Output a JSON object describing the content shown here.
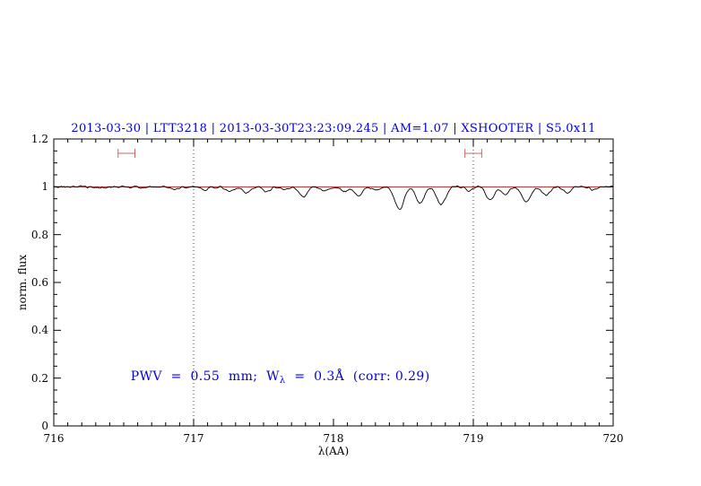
{
  "chart_data": {
    "type": "line",
    "title": "2013-03-30 | LTT3218 | 2013-03-30T23:23:09.245 | AM=1.07 | XSHOOTER | S5.0x11",
    "title_color": "#0000dd",
    "xlabel": "λ(AA)",
    "ylabel": "norm. flux",
    "xlim": [
      716,
      720
    ],
    "ylim": [
      0,
      1.2
    ],
    "xticks": [
      716,
      717,
      718,
      719,
      720
    ],
    "xtick_labels": [
      "716",
      "717",
      "718",
      "719",
      "720"
    ],
    "yticks": [
      0,
      0.2,
      0.4,
      0.6,
      0.8,
      1,
      1.2
    ],
    "ytick_labels": [
      "0",
      "0.2",
      "0.4",
      "0.6",
      "0.8",
      "1",
      "1.2"
    ],
    "x_minor_step": 0.1,
    "y_minor_step": 0.05,
    "grid": "off",
    "legend": "none",
    "dotted_vlines": [
      717,
      719
    ],
    "series": [
      {
        "name": "observed-spectrum",
        "color": "#000000",
        "description": "normalized spectrum near 1.0 with telluric absorption dips"
      },
      {
        "name": "continuum-model",
        "color": "#b22222",
        "flat_value": 1.0
      }
    ],
    "absorption_lines": [
      [
        716.33,
        0.007,
        0.025
      ],
      [
        716.62,
        0.006,
        0.025
      ],
      [
        716.87,
        0.01,
        0.028
      ],
      [
        717.08,
        0.012,
        0.025
      ],
      [
        717.26,
        0.02,
        0.028
      ],
      [
        717.38,
        0.024,
        0.028
      ],
      [
        717.52,
        0.018,
        0.028
      ],
      [
        717.66,
        0.012,
        0.025
      ],
      [
        717.78,
        0.042,
        0.03
      ],
      [
        717.93,
        0.014,
        0.025
      ],
      [
        718.08,
        0.02,
        0.028
      ],
      [
        718.18,
        0.034,
        0.028
      ],
      [
        718.31,
        0.012,
        0.025
      ],
      [
        718.47,
        0.095,
        0.032
      ],
      [
        718.62,
        0.068,
        0.03
      ],
      [
        718.77,
        0.075,
        0.032
      ],
      [
        718.97,
        0.016,
        0.025
      ],
      [
        719.12,
        0.055,
        0.03
      ],
      [
        719.23,
        0.028,
        0.025
      ],
      [
        719.38,
        0.063,
        0.032
      ],
      [
        719.52,
        0.034,
        0.028
      ],
      [
        719.67,
        0.024,
        0.028
      ],
      [
        719.86,
        0.012,
        0.025
      ]
    ],
    "noise_amplitude": 0.0045,
    "sample_step": 0.008,
    "range_markers": {
      "color": "#cc6666",
      "flux": 1.14,
      "halfwidth": 0.06,
      "centers": [
        716.52,
        719.0
      ]
    },
    "annotation": {
      "prefix": "PWV  =  0.55  mm;  W",
      "sub": "λ",
      "suffix": "  =  0.3Å  (corr: 0.29)",
      "x": 716.55,
      "y": 0.235,
      "color": "#0000dd"
    }
  }
}
